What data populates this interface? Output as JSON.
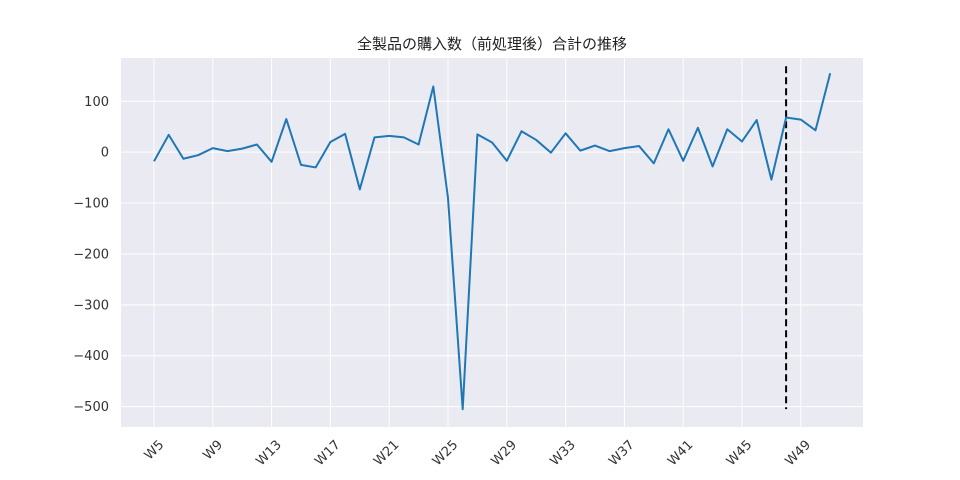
{
  "chart_data": {
    "type": "line",
    "title": "全製品の購入数（前処理後）合計の推移",
    "xlabel": "",
    "ylabel": "",
    "x": [
      "W5",
      "W6",
      "W7",
      "W8",
      "W9",
      "W10",
      "W11",
      "W12",
      "W13",
      "W14",
      "W15",
      "W16",
      "W17",
      "W18",
      "W19",
      "W20",
      "W21",
      "W22",
      "W23",
      "W24",
      "W25",
      "W26",
      "W27",
      "W28",
      "W29",
      "W30",
      "W31",
      "W32",
      "W33",
      "W34",
      "W35",
      "W36",
      "W37",
      "W38",
      "W39",
      "W40",
      "W41",
      "W42",
      "W43",
      "W44",
      "W45",
      "W46",
      "W47",
      "W48",
      "W49",
      "W50",
      "W51"
    ],
    "x_tick_labels": [
      "W5",
      "W9",
      "W13",
      "W17",
      "W21",
      "W25",
      "W29",
      "W33",
      "W37",
      "W41",
      "W45",
      "W49"
    ],
    "values": [
      -18,
      34,
      -13,
      -6,
      8,
      2,
      7,
      15,
      -19,
      65,
      -25,
      -30,
      20,
      36,
      -73,
      29,
      32,
      29,
      15,
      129,
      -90,
      -505,
      35,
      19,
      -17,
      41,
      24,
      -1,
      37,
      3,
      13,
      2,
      8,
      12,
      -22,
      45,
      -17,
      48,
      -28,
      45,
      21,
      63,
      -54,
      68,
      64,
      43,
      155
    ],
    "ylim": [
      -540,
      185
    ],
    "y_ticks": [
      100,
      0,
      -100,
      -200,
      -300,
      -400,
      -500
    ],
    "y_tick_labels": [
      "100",
      "0",
      "−100",
      "−200",
      "−300",
      "−400",
      "−500"
    ],
    "vline_x": "W48",
    "vline_range": [
      -505,
      155
    ],
    "grid": true,
    "colors": {
      "line": "#1f77b4",
      "background": "#eaeaf2",
      "grid": "#ffffff",
      "vline": "#000000"
    }
  }
}
